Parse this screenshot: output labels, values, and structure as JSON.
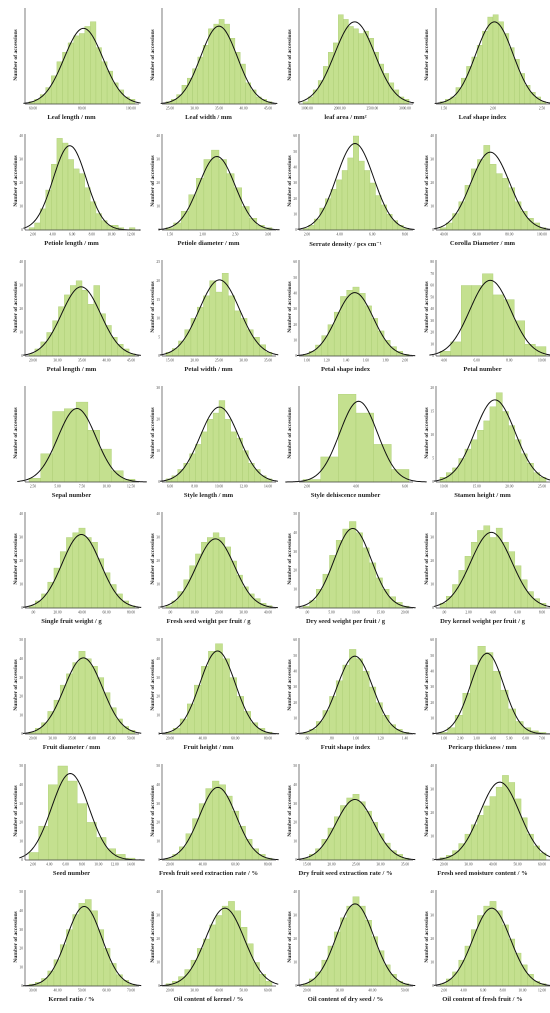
{
  "chart_data": [
    {
      "type": "bar",
      "xlabel": "Leaf length / mm",
      "ylabel": "Number of accessions",
      "ylim": [
        0,
        40
      ],
      "yticks": [],
      "xticks": [
        "60.00",
        "80.00",
        "100.00"
      ],
      "values": [
        1,
        2,
        4,
        7,
        12,
        18,
        22,
        26,
        29,
        30,
        33,
        35,
        24,
        18,
        14,
        9,
        6,
        3,
        2
      ]
    },
    {
      "type": "bar",
      "xlabel": "Leaf width / mm",
      "ylabel": "Number of accessions",
      "ylim": [
        0,
        40
      ],
      "yticks": [],
      "xticks": [
        "25.00",
        "30.00",
        "35.00",
        "40.00",
        "45.00"
      ],
      "values": [
        1,
        2,
        4,
        8,
        11,
        15,
        20,
        25,
        32,
        34,
        36,
        34,
        28,
        22,
        17,
        9,
        6,
        3,
        2,
        1
      ]
    },
    {
      "type": "bar",
      "xlabel": "leaf area / mm²",
      "ylabel": "Number of accessions",
      "ylim": [
        0,
        40
      ],
      "yticks": [],
      "xticks": [
        "1000.00",
        "2000.00",
        "2500.00",
        "3000.00"
      ],
      "values": [
        1,
        3,
        6,
        10,
        16,
        22,
        26,
        38,
        36,
        33,
        32,
        30,
        31,
        28,
        22,
        17,
        13,
        9,
        6,
        3,
        2
      ]
    },
    {
      "type": "bar",
      "xlabel": "Leaf shape index",
      "ylabel": "Number of accessions",
      "ylim": [
        0,
        40
      ],
      "yticks": [],
      "xticks": [
        "1.50",
        "2.00",
        "2.50"
      ],
      "values": [
        1,
        2,
        3,
        7,
        11,
        16,
        20,
        25,
        31,
        37,
        38,
        35,
        30,
        24,
        19,
        13,
        8,
        5,
        3,
        1
      ]
    },
    {
      "type": "bar",
      "xlabel": "Petiole length / mm",
      "ylabel": "Number of accessions",
      "ylim": [
        0,
        40
      ],
      "yticks": [
        "0",
        "10",
        "20",
        "30",
        "40"
      ],
      "xticks": [
        "2.00",
        "4.00",
        "6.00",
        "8.00",
        "10.00",
        "12.00"
      ],
      "values": [
        1,
        3,
        9,
        17,
        28,
        39,
        37,
        30,
        26,
        24,
        18,
        12,
        7,
        4,
        2,
        2,
        1,
        0,
        1
      ]
    },
    {
      "type": "bar",
      "xlabel": "Petiole diameter / mm",
      "ylabel": "Number of accessions",
      "ylim": [
        0,
        40
      ],
      "yticks": [
        "0",
        "10",
        "20",
        "30",
        "40"
      ],
      "xticks": [
        "1.50",
        "2.00",
        "2.50",
        "3.00"
      ],
      "values": [
        1,
        3,
        8,
        15,
        22,
        30,
        34,
        30,
        24,
        18,
        10,
        5,
        2,
        1
      ]
    },
    {
      "type": "bar",
      "xlabel": "Serrate density / pcs cm⁻¹",
      "ylabel": "Number of accessions",
      "ylim": [
        0,
        60
      ],
      "yticks": [
        "0",
        "10",
        "20",
        "30",
        "40",
        "50",
        "60"
      ],
      "xticks": [
        "2.00",
        "4.00",
        "6.00",
        "8.00"
      ],
      "values": [
        1,
        3,
        7,
        14,
        20,
        26,
        32,
        38,
        46,
        60,
        44,
        38,
        30,
        22,
        16,
        10,
        6,
        3,
        1
      ]
    },
    {
      "type": "bar",
      "xlabel": "Corolla Diameter / mm",
      "ylabel": "Number of accessions",
      "ylim": [
        0,
        40
      ],
      "yticks": [
        "0",
        "10",
        "20",
        "30",
        "40"
      ],
      "xticks": [
        "40.00",
        "60.00",
        "80.00",
        "100.00"
      ],
      "values": [
        1,
        3,
        7,
        12,
        19,
        26,
        30,
        36,
        28,
        24,
        22,
        18,
        12,
        8,
        5,
        3,
        1
      ]
    },
    {
      "type": "bar",
      "xlabel": "Petal length / mm",
      "ylabel": "Number of accessions",
      "ylim": [
        0,
        40
      ],
      "yticks": [
        "0",
        "10",
        "20",
        "30",
        "40"
      ],
      "xticks": [
        "20.00",
        "30.00",
        "35.00",
        "40.00",
        "45.00"
      ],
      "values": [
        1,
        3,
        6,
        10,
        15,
        21,
        26,
        30,
        32,
        28,
        22,
        30,
        18,
        13,
        8,
        5,
        3,
        1
      ]
    },
    {
      "type": "bar",
      "xlabel": "Petal width / mm",
      "ylabel": "Number of accessions",
      "ylim": [
        0,
        25
      ],
      "yticks": [
        "0",
        "5",
        "10",
        "15",
        "20",
        "25"
      ],
      "xticks": [
        "15.00",
        "20.00",
        "25.00",
        "30.00",
        "35.00"
      ],
      "values": [
        1,
        2,
        4,
        7,
        10,
        13,
        16,
        20,
        17,
        22,
        16,
        12,
        10,
        7,
        5,
        3,
        1
      ]
    },
    {
      "type": "bar",
      "xlabel": "Petal shape index",
      "ylabel": "Number of accessions",
      "ylim": [
        0,
        60
      ],
      "yticks": [
        "0",
        "10",
        "20",
        "30",
        "40",
        "50",
        "60"
      ],
      "xticks": [
        "1.00",
        "1.20",
        "1.40",
        "1.60",
        "1.80",
        "2.00"
      ],
      "values": [
        1,
        3,
        7,
        13,
        20,
        28,
        38,
        42,
        44,
        40,
        32,
        24,
        16,
        10,
        6,
        3,
        1
      ]
    },
    {
      "type": "bar",
      "xlabel": "Petal number",
      "ylabel": "Number of accessions",
      "ylim": [
        0,
        80
      ],
      "yticks": [
        "0",
        "10",
        "20",
        "30",
        "40",
        "50",
        "60",
        "70",
        "80"
      ],
      "xticks": [
        "4.00",
        "6.00",
        "8.00",
        "10.00"
      ],
      "values": [
        4,
        12,
        60,
        60,
        70,
        52,
        48,
        30,
        10,
        8
      ]
    },
    {
      "type": "bar",
      "xlabel": "Sepal number",
      "ylabel": "Number of accessions",
      "ylim": [
        0,
        100
      ],
      "yticks": [],
      "xticks": [
        "2.50",
        "5.00",
        "7.50",
        "10.00",
        "12.50"
      ],
      "values": [
        4,
        30,
        75,
        78,
        85,
        55,
        35,
        12,
        3
      ]
    },
    {
      "type": "bar",
      "xlabel": "Style length / mm",
      "ylabel": "Number of accessions",
      "ylim": [
        0,
        30
      ],
      "yticks": [
        "0",
        "10",
        "20",
        "30"
      ],
      "xticks": [
        "6.00",
        "8.00",
        "10.00",
        "12.00",
        "14.00"
      ],
      "values": [
        1,
        2,
        4,
        6,
        9,
        12,
        16,
        20,
        22,
        26,
        20,
        16,
        14,
        10,
        6,
        4,
        2,
        1
      ]
    },
    {
      "type": "bar",
      "xlabel": "Style dehiscence number",
      "ylabel": "Number of accessions",
      "ylim": [
        0,
        150
      ],
      "yticks": [],
      "xticks": [
        "2.00",
        "4.00",
        "6.00"
      ],
      "values": [
        4,
        40,
        140,
        110,
        60,
        20
      ]
    },
    {
      "type": "bar",
      "xlabel": "Stamen height / mm",
      "ylabel": "Number of accessions",
      "ylim": [
        0,
        20
      ],
      "yticks": [
        "0",
        "5",
        "10",
        "15",
        "20"
      ],
      "xticks": [
        "10.00",
        "15.00",
        "20.00",
        "25.00"
      ],
      "values": [
        1,
        2,
        3,
        5,
        7,
        9,
        11,
        13,
        16,
        19,
        15,
        12,
        9,
        6,
        4,
        2,
        1
      ]
    },
    {
      "type": "bar",
      "xlabel": "Single fruit weight / g",
      "ylabel": "Number of accessions",
      "ylim": [
        0,
        40
      ],
      "yticks": [
        "0",
        "10",
        "20",
        "30",
        "40"
      ],
      "xticks": [
        ".00",
        "20.00",
        "40.00",
        "60.00",
        "80.00"
      ],
      "values": [
        1,
        3,
        6,
        11,
        17,
        24,
        30,
        32,
        34,
        30,
        28,
        21,
        15,
        10,
        6,
        3,
        1
      ]
    },
    {
      "type": "bar",
      "xlabel": "Fresh seed weight per fruit / g",
      "ylabel": "Number of accessions",
      "ylim": [
        0,
        40
      ],
      "yticks": [
        "0",
        "10",
        "20",
        "30",
        "40"
      ],
      "xticks": [
        ".00",
        "10.00",
        "20.00",
        "30.00",
        "40.00"
      ],
      "values": [
        1,
        3,
        7,
        12,
        18,
        23,
        28,
        30,
        32,
        30,
        26,
        20,
        14,
        9,
        6,
        4,
        2,
        1
      ]
    },
    {
      "type": "bar",
      "xlabel": "Dry seed weight per fruit / g",
      "ylabel": "Number of accessions",
      "ylim": [
        0,
        50
      ],
      "yticks": [
        "0",
        "10",
        "20",
        "30",
        "40",
        "50"
      ],
      "xticks": [
        ".00",
        "5.00",
        "10.00",
        "15.00",
        "20.00"
      ],
      "values": [
        1,
        4,
        10,
        18,
        28,
        36,
        42,
        46,
        40,
        32,
        24,
        16,
        10,
        6,
        3,
        1
      ]
    },
    {
      "type": "bar",
      "xlabel": "Dry kernel weight per fruit / g",
      "ylabel": "Number of accessions",
      "ylim": [
        0,
        40
      ],
      "yticks": [
        "0",
        "10",
        "20",
        "30",
        "40"
      ],
      "xticks": [
        ".00",
        "2.00",
        "4.00",
        "6.00",
        "8.00"
      ],
      "values": [
        2,
        5,
        10,
        16,
        22,
        28,
        33,
        35,
        30,
        34,
        28,
        24,
        18,
        12,
        7,
        4,
        2
      ]
    },
    {
      "type": "bar",
      "xlabel": "Fruit diameter / mm",
      "ylabel": "Number of accessions",
      "ylim": [
        0,
        50
      ],
      "yticks": [
        "0",
        "10",
        "20",
        "30",
        "40",
        "50"
      ],
      "xticks": [
        "20.00",
        "30.00",
        "35.00",
        "40.00",
        "45.00",
        "50.00"
      ],
      "values": [
        1,
        3,
        6,
        12,
        18,
        26,
        32,
        38,
        44,
        40,
        36,
        30,
        22,
        14,
        8,
        4,
        2
      ]
    },
    {
      "type": "bar",
      "xlabel": "Fruit height / mm",
      "ylabel": "Number of accessions",
      "ylim": [
        0,
        50
      ],
      "yticks": [
        "0",
        "10",
        "20",
        "30",
        "40",
        "50"
      ],
      "xticks": [
        "20.00",
        "40.00",
        "60.00",
        "80.00"
      ],
      "values": [
        1,
        3,
        8,
        16,
        26,
        36,
        44,
        48,
        40,
        30,
        20,
        12,
        6,
        3,
        1
      ]
    },
    {
      "type": "bar",
      "xlabel": "Fruit shape index",
      "ylabel": "Number of accessions",
      "ylim": [
        0,
        60
      ],
      "yticks": [
        "0",
        "10",
        "20",
        "30",
        "40",
        "50",
        "60"
      ],
      "xticks": [
        ".60",
        ".80",
        "1.00",
        "1.20",
        "1.40"
      ],
      "values": [
        1,
        3,
        8,
        15,
        24,
        34,
        44,
        54,
        48,
        40,
        30,
        20,
        12,
        6,
        3,
        1
      ]
    },
    {
      "type": "bar",
      "xlabel": "Pericarp thickness / mm",
      "ylabel": "Number of accessions",
      "ylim": [
        0,
        60
      ],
      "yticks": [
        "0",
        "10",
        "20",
        "30",
        "40",
        "50",
        "60"
      ],
      "xticks": [
        "1.00",
        "2.00",
        "3.00",
        "4.00",
        "5.00",
        "6.00",
        "7.00"
      ],
      "values": [
        1,
        4,
        12,
        26,
        44,
        56,
        52,
        40,
        28,
        16,
        8,
        4,
        2,
        1
      ]
    },
    {
      "type": "bar",
      "xlabel": "Seed number",
      "ylabel": "Number of accessions",
      "ylim": [
        0,
        50
      ],
      "yticks": [
        "0",
        "10",
        "20",
        "30",
        "40",
        "50"
      ],
      "xticks": [
        "2.00",
        "4.00",
        "6.00",
        "8.00",
        "10.00",
        "12.00",
        "14.00"
      ],
      "values": [
        4,
        18,
        40,
        50,
        42,
        30,
        20,
        12,
        6,
        3,
        1
      ]
    },
    {
      "type": "bar",
      "xlabel": "Fresh fruit seed extraction rate / %",
      "ylabel": "Number of accessions",
      "ylim": [
        0,
        50
      ],
      "yticks": [
        "0",
        "10",
        "20",
        "30",
        "40",
        "50"
      ],
      "xticks": [
        "20.00",
        "40.00",
        "60.00",
        "80.00"
      ],
      "values": [
        1,
        3,
        7,
        14,
        22,
        30,
        38,
        42,
        40,
        34,
        26,
        18,
        11,
        6,
        3,
        1
      ]
    },
    {
      "type": "bar",
      "xlabel": "Dry fruit seed extraction rate / %",
      "ylabel": "Number of accessions",
      "ylim": [
        0,
        50
      ],
      "yticks": [
        "0",
        "10",
        "20",
        "30",
        "40",
        "50"
      ],
      "xticks": [
        "15.00",
        "20.00",
        "25.00",
        "30.00",
        "35.00"
      ],
      "values": [
        1,
        3,
        6,
        11,
        17,
        23,
        29,
        33,
        35,
        31,
        26,
        20,
        14,
        9,
        5,
        3,
        1
      ]
    },
    {
      "type": "bar",
      "xlabel": "Fresh seed moisture content / %",
      "ylabel": "Number of accessions",
      "ylim": [
        0,
        40
      ],
      "yticks": [
        "0",
        "10",
        "20",
        "30",
        "40"
      ],
      "xticks": [
        "20.00",
        "30.00",
        "40.00",
        "50.00",
        "60.00"
      ],
      "values": [
        1,
        2,
        4,
        7,
        11,
        15,
        19,
        23,
        27,
        31,
        36,
        33,
        26,
        18,
        11,
        6,
        3
      ]
    },
    {
      "type": "bar",
      "xlabel": "Kernel ratio / %",
      "ylabel": "Number of accessions",
      "ylim": [
        0,
        50
      ],
      "yticks": [
        "0",
        "10",
        "20",
        "30",
        "40",
        "50"
      ],
      "xticks": [
        "30.00",
        "40.00",
        "50.00",
        "60.00",
        "70.00"
      ],
      "values": [
        1,
        2,
        4,
        8,
        14,
        22,
        30,
        38,
        44,
        46,
        40,
        30,
        20,
        12,
        6,
        3,
        1
      ]
    },
    {
      "type": "bar",
      "xlabel": "Oil content of kernel / %",
      "ylabel": "Number of accessions",
      "ylim": [
        0,
        40
      ],
      "yticks": [
        "0",
        "10",
        "20",
        "30",
        "40"
      ],
      "xticks": [
        "20.00",
        "30.00",
        "40.00",
        "50.00",
        "60.00"
      ],
      "values": [
        1,
        2,
        4,
        7,
        11,
        16,
        20,
        26,
        30,
        34,
        36,
        32,
        25,
        18,
        10,
        5,
        2
      ]
    },
    {
      "type": "bar",
      "xlabel": "Oil content of dry seed / %",
      "ylabel": "Number of accessions",
      "ylim": [
        0,
        40
      ],
      "yticks": [
        "0",
        "10",
        "20",
        "30",
        "40"
      ],
      "xticks": [
        "20.00",
        "30.00",
        "40.00",
        "50.00"
      ],
      "values": [
        1,
        3,
        6,
        11,
        17,
        23,
        29,
        34,
        38,
        34,
        28,
        21,
        15,
        9,
        5,
        2,
        1
      ]
    },
    {
      "type": "bar",
      "xlabel": "Oil content of fresh fruit / %",
      "ylabel": "Number of accessions",
      "ylim": [
        0,
        40
      ],
      "yticks": [
        "0",
        "10",
        "20",
        "30",
        "40"
      ],
      "xticks": [
        "2.00",
        "4.00",
        "6.00",
        "8.00",
        "10.00",
        "12.00"
      ],
      "values": [
        1,
        3,
        6,
        11,
        17,
        24,
        30,
        34,
        36,
        32,
        26,
        20,
        14,
        9,
        5,
        2,
        1
      ]
    }
  ]
}
